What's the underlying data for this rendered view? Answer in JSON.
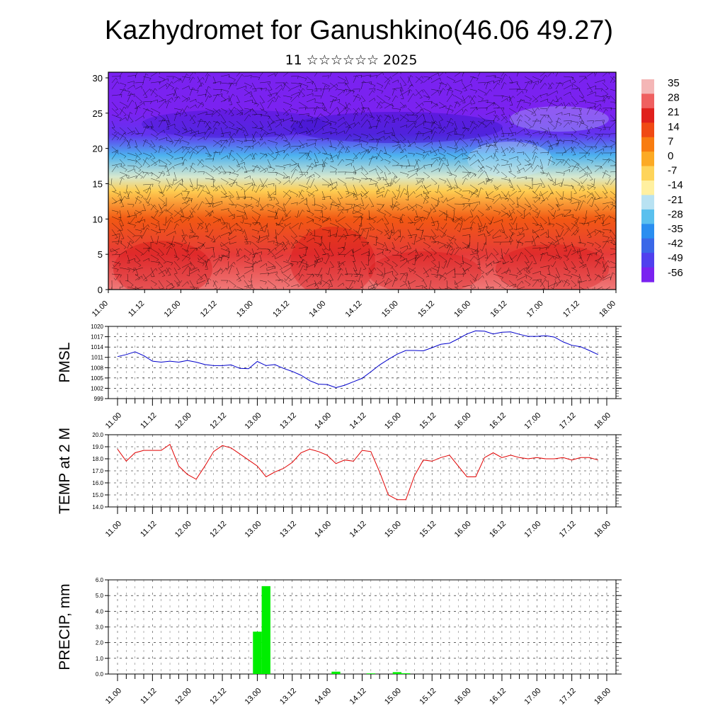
{
  "header": {
    "title": "Kazhydromet for Ganushkino(46.06 49.27)",
    "subtitle": "11 ☆☆☆☆☆☆ 2025"
  },
  "colors": {
    "temp_line": "#e00000",
    "pmsl_line": "#0000cc",
    "precip_bar": "#00ee00",
    "grid": "#000000"
  },
  "time_labels": [
    "11.00",
    "11.12",
    "12.00",
    "12.12",
    "13.00",
    "13.12",
    "14.00",
    "14.12",
    "15.00",
    "15.12",
    "16.00",
    "16.12",
    "17.00",
    "17.12",
    "18.00"
  ],
  "chart_data": [
    {
      "type": "heatmap",
      "name": "",
      "x_tick_labels": [
        "11.00",
        "11.12",
        "12.00",
        "12.12",
        "13.00",
        "13.12",
        "14.00",
        "14.12",
        "15.00",
        "15.12",
        "16.00",
        "16.12",
        "17.00",
        "17.12",
        "18.00"
      ],
      "y_ticks": [
        0,
        5,
        10,
        15,
        20,
        25,
        30
      ],
      "ylim": [
        0,
        30.8
      ],
      "colorbar": {
        "labels": [
          "35",
          "28",
          "21",
          "14",
          "7",
          "0",
          "-7",
          "-14",
          "-21",
          "-28",
          "-35",
          "-42",
          "-49",
          "-56"
        ],
        "colors": [
          "#f4b6b6",
          "#ef6060",
          "#e0201c",
          "#f04a14",
          "#f87c10",
          "#fcaa24",
          "#fed45a",
          "#fff0a0",
          "#b8e2f2",
          "#5ac0ee",
          "#2a8ef0",
          "#3a68e8",
          "#5040ee",
          "#7a22f0"
        ]
      },
      "profile_temperatures": [
        [
          0,
          30
        ],
        [
          5,
          24
        ],
        [
          10,
          12
        ],
        [
          14,
          -6
        ],
        [
          16,
          -18
        ],
        [
          19,
          -30
        ],
        [
          22,
          -52
        ],
        [
          25,
          -57
        ],
        [
          28,
          -58
        ],
        [
          31,
          -60
        ]
      ],
      "overlay": "wind barbs"
    },
    {
      "type": "line",
      "name": "PMSL",
      "ylabel": "PMSL",
      "ylim": [
        999,
        1020
      ],
      "y_ticks": [
        999,
        1002,
        1005,
        1008,
        1011,
        1014,
        1017,
        1020
      ],
      "x_tick_labels": [
        "11.00",
        "11.12",
        "12.00",
        "12.12",
        "13.00",
        "13.12",
        "14.00",
        "14.12",
        "15.00",
        "15.12",
        "16.00",
        "16.12",
        "17.00",
        "17.12",
        "18.00"
      ],
      "x": [
        0,
        3,
        6,
        9,
        12,
        15,
        18,
        21,
        24,
        27,
        30,
        33,
        36,
        39,
        42,
        45,
        48,
        51,
        54,
        57,
        60,
        63,
        66,
        69,
        72,
        75,
        78,
        81,
        84,
        87,
        90,
        93,
        96,
        99,
        102,
        105,
        108,
        111,
        114,
        117,
        120,
        123,
        126,
        129,
        132,
        135,
        138,
        141,
        144,
        147,
        150,
        153,
        156,
        159,
        162,
        165
      ],
      "values": [
        1011.2,
        1011.8,
        1012.6,
        1011.5,
        1009.9,
        1009.6,
        1009.9,
        1009.6,
        1010.1,
        1009.6,
        1008.9,
        1008.6,
        1008.6,
        1008.8,
        1007.8,
        1007.7,
        1009.8,
        1008.6,
        1008.9,
        1007.8,
        1006.9,
        1005.8,
        1004.2,
        1003.2,
        1003.1,
        1002.2,
        1002.9,
        1003.9,
        1004.9,
        1006.8,
        1008.8,
        1010.4,
        1011.9,
        1013.0,
        1013.0,
        1012.9,
        1013.8,
        1014.8,
        1015.1,
        1016.4,
        1017.8,
        1018.7,
        1018.6,
        1017.8,
        1018.3,
        1018.4,
        1017.7,
        1017.1,
        1017.1,
        1017.3,
        1016.9,
        1015.5,
        1014.5,
        1014.1,
        1013.0,
        1011.8
      ]
    },
    {
      "type": "line",
      "name": "TEMP at 2 M",
      "ylabel": "TEMP at 2 M",
      "ylim": [
        14.0,
        20.0
      ],
      "y_ticks": [
        "14.0",
        "15.0",
        "16.0",
        "17.0",
        "18.0",
        "19.0",
        "20.0"
      ],
      "x_tick_labels": [
        "11.00",
        "11.12",
        "12.00",
        "12.12",
        "13.00",
        "13.12",
        "14.00",
        "14.12",
        "15.00",
        "15.12",
        "16.00",
        "16.12",
        "17.00",
        "17.12",
        "18.00"
      ],
      "x": [
        0,
        3,
        6,
        9,
        12,
        15,
        18,
        21,
        24,
        27,
        30,
        33,
        36,
        39,
        42,
        45,
        48,
        51,
        54,
        57,
        60,
        63,
        66,
        69,
        72,
        75,
        78,
        81,
        84,
        87,
        90,
        93,
        96,
        99,
        102,
        105,
        108,
        111,
        114,
        117,
        120,
        123,
        126,
        129,
        132,
        135,
        138,
        141,
        144,
        147,
        150,
        153,
        156,
        159,
        162,
        165
      ],
      "values": [
        18.8,
        17.8,
        18.5,
        18.7,
        18.7,
        18.7,
        19.2,
        17.4,
        16.7,
        16.3,
        17.4,
        18.6,
        19.1,
        18.9,
        18.4,
        17.9,
        17.4,
        16.5,
        16.9,
        17.2,
        17.7,
        18.5,
        18.8,
        18.6,
        18.3,
        17.6,
        17.9,
        17.8,
        18.7,
        18.6,
        16.9,
        15.0,
        14.6,
        14.6,
        16.6,
        17.9,
        17.8,
        18.1,
        18.3,
        17.4,
        16.5,
        16.5,
        18.1,
        18.5,
        18.1,
        18.3,
        18.1,
        18.0,
        18.1,
        18.0,
        18.0,
        18.1,
        17.9,
        18.1,
        18.1,
        17.9
      ]
    },
    {
      "type": "bar",
      "name": "PRECIP, mm",
      "ylabel": "PRECIP, mm",
      "ylim": [
        0,
        6.0
      ],
      "y_ticks": [
        "0.0",
        "1.0",
        "2.0",
        "3.0",
        "4.0",
        "5.0",
        "6.0"
      ],
      "x_tick_labels": [
        "11.00",
        "11.12",
        "12.00",
        "12.12",
        "13.00",
        "13.12",
        "14.00",
        "14.12",
        "15.00",
        "15.12",
        "16.00",
        "16.12",
        "17.00",
        "17.12",
        "18.00"
      ],
      "x": [
        48,
        51,
        75,
        87,
        96,
        99
      ],
      "values": [
        2.7,
        5.6,
        0.15,
        0.04,
        0.12,
        0.05
      ]
    }
  ]
}
